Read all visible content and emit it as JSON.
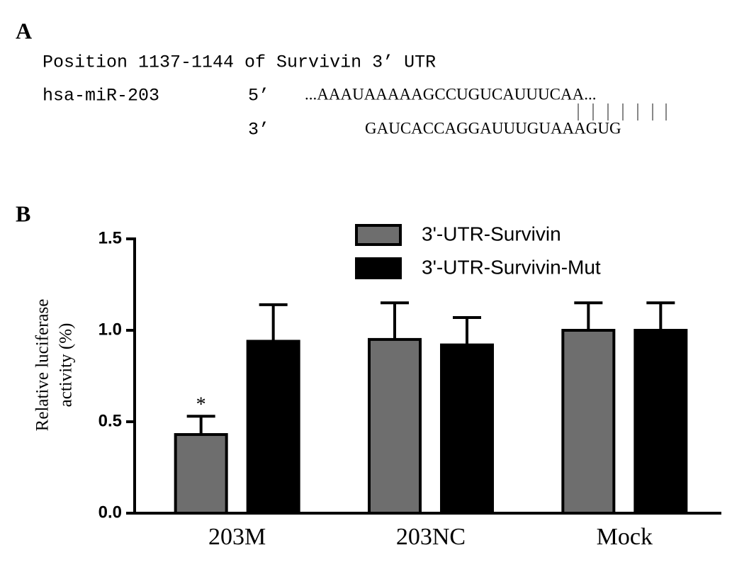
{
  "panel_a": {
    "label": "A",
    "heading": "Position 1137-1144 of Survivin 3’ UTR",
    "mirna": "hsa-miR-203",
    "end_5": "5’",
    "target_seq": "...AAAUAAAAAGCCUGUCAUUUCAA...",
    "end_3": "3’",
    "mirna_seq": "GAUCACCAGGAUUUGUAAAGUG"
  },
  "chart_data": {
    "type": "bar",
    "panel_label": "B",
    "ylabel": [
      "Relative luciferase",
      "activity (%)"
    ],
    "categories": [
      "203M",
      "203NC",
      "Mock"
    ],
    "series": [
      {
        "name": "3'-UTR-Survivin",
        "color": "#6e6e6e",
        "values": [
          0.43,
          0.95,
          1.0
        ],
        "errors": [
          0.1,
          0.2,
          0.15
        ],
        "significance": [
          "*",
          null,
          null
        ]
      },
      {
        "name": "3'-UTR-Survivin-Mut",
        "color": "#000000",
        "values": [
          0.94,
          0.92,
          1.0
        ],
        "errors": [
          0.2,
          0.15,
          0.15
        ]
      }
    ],
    "ylim": [
      0,
      1.5
    ],
    "yticks": [
      {
        "value": 0,
        "label": "0.0"
      },
      {
        "value": 0.5,
        "label": "0.5"
      },
      {
        "value": 1,
        "label": "1.0"
      },
      {
        "value": 1.5,
        "label": "1.5"
      }
    ],
    "legend": "top-right"
  }
}
